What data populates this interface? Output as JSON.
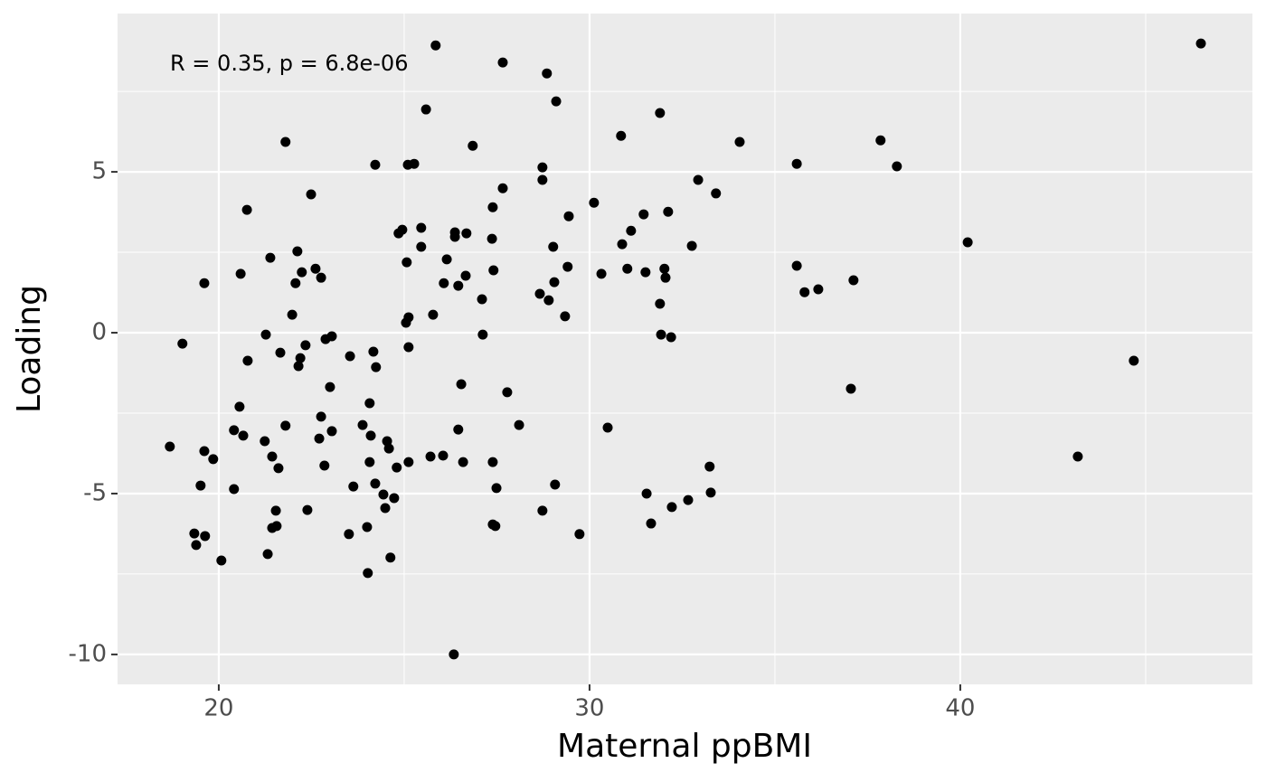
{
  "chart_data": {
    "type": "scatter",
    "x_label": "Maternal ppBMI",
    "y_label": "Loading",
    "annotation": "R = 0.35, p = 6.8e-06",
    "color": "#000000",
    "grid": true,
    "xlim": [
      17.27,
      47.88
    ],
    "ylim": [
      -10.93,
      9.92
    ],
    "xticks": [
      20,
      30,
      40
    ],
    "yticks": [
      -10,
      -5,
      0,
      5
    ],
    "xminor": [
      25,
      35,
      45
    ],
    "yminor": [
      -7.5,
      -2.5,
      2.5,
      7.5
    ],
    "x": [
      18.68,
      19.02,
      19.34,
      19.39,
      19.51,
      19.61,
      19.61,
      19.63,
      19.85,
      20.07,
      20.41,
      20.41,
      20.56,
      20.59,
      20.66,
      20.76,
      20.78,
      21.24,
      21.27,
      21.32,
      21.39,
      21.44,
      21.44,
      21.54,
      21.56,
      21.61,
      21.66,
      21.8,
      21.8,
      21.98,
      22.07,
      22.12,
      22.15,
      22.2,
      22.24,
      22.34,
      22.39,
      22.49,
      22.61,
      22.71,
      22.76,
      22.76,
      22.85,
      22.88,
      23.0,
      23.05,
      23.05,
      23.51,
      23.54,
      23.63,
      23.88,
      24.0,
      24.02,
      24.07,
      24.07,
      24.1,
      24.17,
      24.22,
      24.22,
      24.24,
      24.44,
      24.49,
      24.54,
      24.59,
      24.63,
      24.73,
      24.8,
      24.85,
      24.95,
      25.05,
      25.07,
      25.1,
      25.12,
      25.12,
      25.12,
      25.27,
      25.46,
      25.46,
      25.59,
      25.71,
      25.78,
      25.85,
      26.05,
      26.07,
      26.15,
      26.34,
      26.37,
      26.37,
      26.46,
      26.46,
      26.54,
      26.59,
      26.66,
      26.68,
      26.85,
      27.1,
      27.12,
      27.37,
      27.39,
      27.39,
      27.41,
      27.39,
      27.46,
      27.49,
      27.66,
      27.66,
      27.78,
      28.1,
      28.66,
      28.73,
      28.73,
      28.73,
      28.85,
      28.9,
      29.02,
      29.05,
      29.07,
      29.1,
      29.34,
      29.41,
      29.44,
      29.73,
      30.12,
      30.32,
      30.49,
      30.85,
      30.88,
      31.02,
      31.12,
      31.46,
      31.51,
      31.54,
      31.66,
      31.9,
      31.9,
      31.93,
      32.02,
      32.05,
      32.12,
      32.2,
      32.22,
      32.66,
      32.76,
      32.93,
      33.24,
      33.27,
      33.41,
      34.05,
      35.59,
      35.59,
      35.8,
      36.17,
      37.05,
      37.12,
      37.85,
      38.29,
      40.2,
      43.17,
      44.68,
      46.49
    ],
    "values": [
      -3.54,
      -0.34,
      -6.24,
      -6.6,
      -4.75,
      1.54,
      -3.68,
      -6.32,
      -3.93,
      -7.08,
      -4.86,
      -3.03,
      -2.3,
      1.83,
      -3.2,
      3.82,
      -0.87,
      -3.37,
      -0.06,
      -6.88,
      2.33,
      -3.85,
      -6.07,
      -5.53,
      -6.01,
      -4.21,
      -0.62,
      -2.89,
      5.93,
      0.56,
      1.54,
      2.53,
      -1.04,
      -0.79,
      1.88,
      -0.39,
      -5.51,
      4.3,
      1.99,
      -3.29,
      -2.61,
      1.71,
      -4.13,
      -0.2,
      -1.69,
      -0.11,
      -3.06,
      -6.26,
      -0.73,
      -4.78,
      -2.87,
      -6.04,
      -7.47,
      -2.19,
      -4.02,
      -3.2,
      -0.59,
      5.22,
      -4.69,
      -1.07,
      -5.03,
      -5.45,
      -3.37,
      -3.6,
      -6.99,
      -5.14,
      -4.19,
      3.09,
      3.2,
      0.31,
      2.19,
      5.22,
      -0.45,
      0.48,
      -4.02,
      5.25,
      3.26,
      2.67,
      6.94,
      -3.85,
      0.56,
      8.93,
      -3.82,
      1.54,
      2.28,
      -10.0,
      3.12,
      2.98,
      1.46,
      -3.01,
      -1.6,
      -4.02,
      1.77,
      3.09,
      5.81,
      1.04,
      -0.06,
      2.92,
      3.9,
      -4.02,
      1.94,
      -5.96,
      -6.01,
      -4.83,
      8.4,
      4.49,
      -1.85,
      -2.87,
      1.21,
      5.14,
      4.75,
      -5.53,
      8.06,
      1.01,
      2.67,
      1.57,
      -4.72,
      7.19,
      0.51,
      2.05,
      3.62,
      -6.26,
      4.04,
      1.83,
      -2.95,
      6.12,
      2.75,
      1.99,
      3.17,
      3.68,
      1.88,
      -5.0,
      -5.93,
      6.83,
      0.9,
      -0.06,
      1.99,
      1.71,
      3.76,
      -0.14,
      -5.42,
      -5.2,
      2.7,
      4.75,
      -4.16,
      -4.97,
      4.33,
      5.93,
      5.25,
      2.08,
      1.26,
      1.35,
      -1.74,
      1.63,
      5.98,
      5.17,
      2.81,
      -3.85,
      -0.87,
      8.99
    ]
  }
}
